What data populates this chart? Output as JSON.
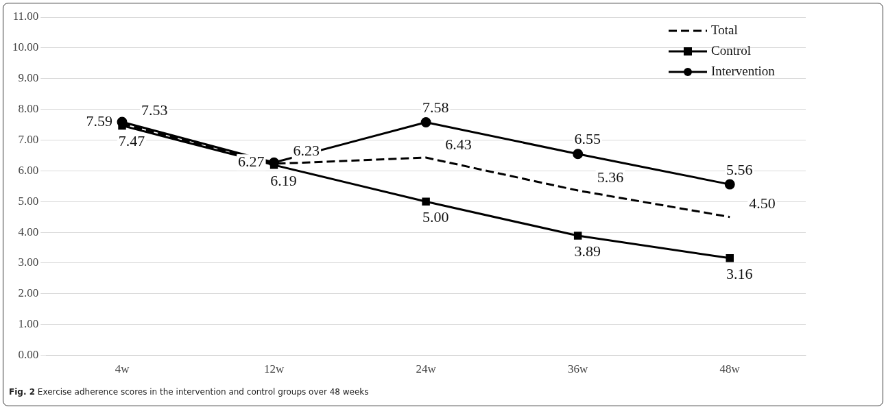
{
  "chart_data": {
    "type": "line",
    "categories": [
      "4w",
      "12w",
      "24w",
      "36w",
      "48w"
    ],
    "series": [
      {
        "name": "Total",
        "color": "#000000",
        "values": [
          7.53,
          6.23,
          6.43,
          5.36,
          4.5
        ],
        "value_labels": [
          "7.53",
          "6.23",
          "6.43",
          "5.36",
          "4.50"
        ],
        "line_style": "dashed",
        "marker": "none"
      },
      {
        "name": "Control",
        "color": "#000000",
        "values": [
          7.47,
          6.19,
          5.0,
          3.89,
          3.16
        ],
        "value_labels": [
          "7.47",
          "6.19",
          "5.00",
          "3.89",
          "3.16"
        ],
        "line_style": "solid",
        "marker": "square"
      },
      {
        "name": "Intervention",
        "color": "#000000",
        "values": [
          7.59,
          6.27,
          7.58,
          6.55,
          5.56
        ],
        "value_labels": [
          "7.59",
          "6.27",
          "7.58",
          "6.55",
          "5.56"
        ],
        "line_style": "solid",
        "marker": "circle"
      }
    ],
    "ylim": [
      0,
      11
    ],
    "yticks": [
      {
        "value": 0,
        "label": "0.00"
      },
      {
        "value": 1,
        "label": "1.00"
      },
      {
        "value": 2,
        "label": "2.00"
      },
      {
        "value": 3,
        "label": "3.00"
      },
      {
        "value": 4,
        "label": "4.00"
      },
      {
        "value": 5,
        "label": "5.00"
      },
      {
        "value": 6,
        "label": "6.00"
      },
      {
        "value": 7,
        "label": "7.00"
      },
      {
        "value": 8,
        "label": "8.00"
      },
      {
        "value": 9,
        "label": "9.00"
      },
      {
        "value": 10,
        "label": "10.00"
      },
      {
        "value": 11,
        "label": "11.00"
      }
    ],
    "grid": "y",
    "legend": "top right",
    "data_labels": true,
    "annotations": [
      "Fig. 2 Exercise adherence scores in the intervention and control groups over 48 weeks"
    ]
  }
}
